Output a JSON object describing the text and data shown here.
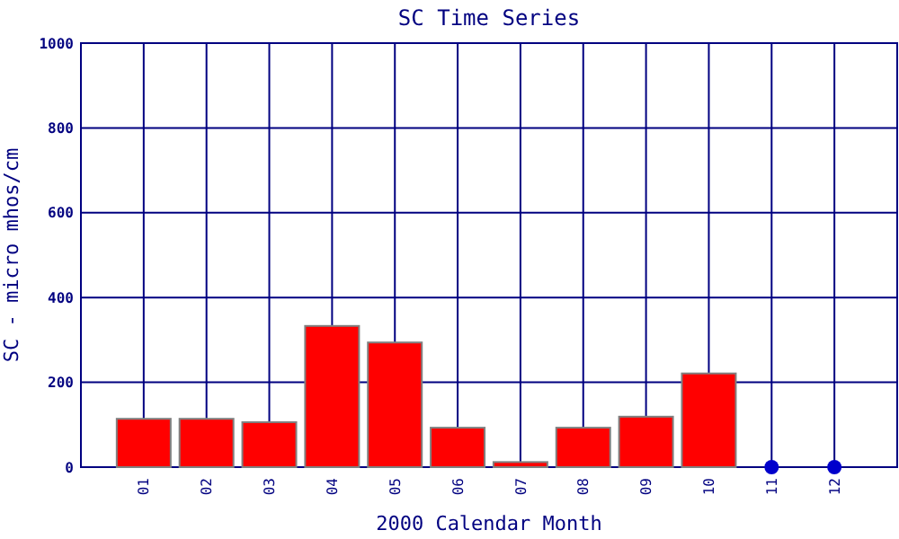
{
  "chart_data": {
    "type": "bar",
    "title": "SC Time Series",
    "xlabel": "2000 Calendar Month",
    "ylabel": "SC - micro mhos/cm",
    "categories": [
      "01",
      "02",
      "03",
      "04",
      "05",
      "06",
      "07",
      "08",
      "09",
      "10",
      "11",
      "12"
    ],
    "series": [
      {
        "color": "#ff0000",
        "values": [
          114,
          114,
          106,
          333,
          294,
          93,
          12,
          93,
          119,
          221,
          null,
          null
        ]
      },
      {
        "type": "scatter",
        "color": "#0000cc",
        "x": [
          "11",
          "12"
        ],
        "values": [
          0,
          0
        ],
        "marker": "circle"
      }
    ],
    "ylim": [
      0,
      1000
    ],
    "yticks": [
      0,
      200,
      400,
      600,
      800,
      1000
    ],
    "grid": true
  }
}
